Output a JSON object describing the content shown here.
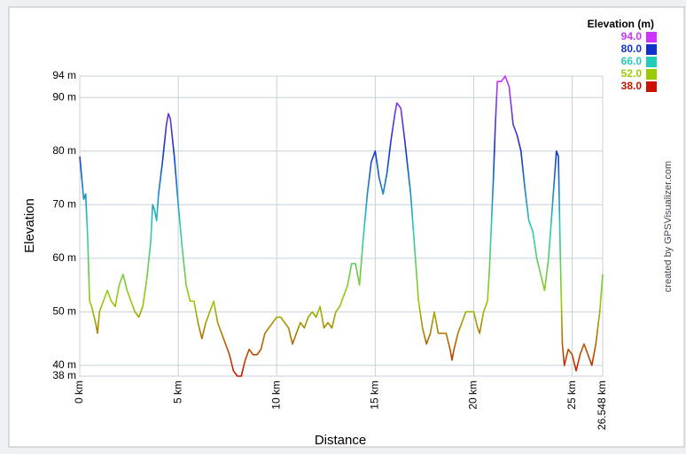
{
  "chart_data": {
    "type": "line",
    "x_label": "Distance",
    "y_label": "Elevation",
    "credit": "created by GPSVisualizer.com",
    "x": [
      0,
      0.2,
      0.3,
      0.4,
      0.5,
      0.6,
      0.8,
      0.9,
      1.0,
      1.2,
      1.4,
      1.6,
      1.8,
      2.0,
      2.2,
      2.4,
      2.6,
      2.8,
      3.0,
      3.2,
      3.4,
      3.6,
      3.7,
      3.8,
      3.9,
      4.0,
      4.2,
      4.4,
      4.5,
      4.6,
      4.8,
      5.0,
      5.2,
      5.4,
      5.6,
      5.8,
      6.0,
      6.2,
      6.4,
      6.6,
      6.8,
      7.0,
      7.2,
      7.4,
      7.6,
      7.8,
      8.0,
      8.2,
      8.4,
      8.6,
      8.8,
      9.0,
      9.2,
      9.4,
      9.6,
      9.8,
      10.0,
      10.2,
      10.4,
      10.6,
      10.8,
      11.0,
      11.2,
      11.4,
      11.6,
      11.8,
      12.0,
      12.2,
      12.4,
      12.6,
      12.8,
      13.0,
      13.2,
      13.4,
      13.6,
      13.8,
      14.0,
      14.2,
      14.4,
      14.6,
      14.8,
      15.0,
      15.2,
      15.4,
      15.6,
      15.8,
      16.0,
      16.1,
      16.3,
      16.5,
      16.8,
      17.0,
      17.2,
      17.4,
      17.6,
      17.8,
      18.0,
      18.2,
      18.4,
      18.6,
      18.8,
      18.9,
      19.0,
      19.2,
      19.4,
      19.6,
      19.8,
      20.0,
      20.2,
      20.3,
      20.5,
      20.7,
      20.8,
      21.0,
      21.1,
      21.2,
      21.4,
      21.6,
      21.8,
      22.0,
      22.2,
      22.4,
      22.6,
      22.8,
      23.0,
      23.2,
      23.4,
      23.6,
      23.8,
      24.0,
      24.2,
      24.3,
      24.4,
      24.5,
      24.6,
      24.8,
      25.0,
      25.2,
      25.4,
      25.6,
      25.8,
      26.0,
      26.2,
      26.4,
      26.548
    ],
    "series": [
      {
        "name": "Elevation",
        "values": [
          79,
          71,
          72,
          64,
          52,
          51,
          48,
          46,
          50,
          52,
          54,
          52,
          51,
          55,
          57,
          54,
          52,
          50,
          49,
          51,
          56,
          63,
          70,
          69,
          67,
          72,
          78,
          85,
          87,
          86,
          79,
          70,
          62,
          55,
          52,
          52,
          48,
          45,
          48,
          50,
          52,
          48,
          46,
          44,
          42,
          39,
          38,
          38,
          41,
          43,
          42,
          42,
          43,
          46,
          47,
          48,
          49,
          49,
          48,
          47,
          44,
          46,
          48,
          47,
          49,
          50,
          49,
          51,
          47,
          48,
          47,
          50,
          51,
          53,
          55,
          59,
          59,
          55,
          64,
          72,
          78,
          80,
          75,
          72,
          76,
          82,
          87,
          89,
          88,
          82,
          72,
          62,
          52,
          47,
          44,
          46,
          50,
          46,
          46,
          46,
          43,
          41,
          43,
          46,
          48,
          50,
          50,
          50,
          47,
          46,
          50,
          52,
          58,
          75,
          85,
          93,
          93,
          94,
          92,
          85,
          83,
          80,
          73,
          67,
          65,
          60,
          57,
          54,
          60,
          70,
          80,
          79,
          60,
          44,
          40,
          43,
          42,
          39,
          42,
          44,
          42,
          40,
          44,
          50,
          57
        ]
      }
    ],
    "xlim": [
      0,
      26.548
    ],
    "ylim": [
      38,
      94
    ],
    "xticks": [
      {
        "value": 0,
        "label": "0 km"
      },
      {
        "value": 5,
        "label": "5 km"
      },
      {
        "value": 10,
        "label": "10 km"
      },
      {
        "value": 15,
        "label": "15 km"
      },
      {
        "value": 20,
        "label": "20 km"
      },
      {
        "value": 25,
        "label": "25 km"
      },
      {
        "value": 26.548,
        "label": "26.548 km"
      }
    ],
    "yticks": [
      {
        "value": 38,
        "label": "38 m"
      },
      {
        "value": 40,
        "label": "40 m"
      },
      {
        "value": 50,
        "label": "50 m"
      },
      {
        "value": 60,
        "label": "60 m"
      },
      {
        "value": 70,
        "label": "70 m"
      },
      {
        "value": 80,
        "label": "80 m"
      },
      {
        "value": 90,
        "label": "90 m"
      },
      {
        "value": 94,
        "label": "94 m"
      }
    ],
    "grid": true,
    "color_scale": {
      "title": "Elevation (m)",
      "values": [
        94,
        80,
        66,
        52,
        38
      ],
      "value_labels": [
        "94.0",
        "80.0",
        "66.0",
        "52.0",
        "38.0"
      ],
      "colors": [
        "#cc33ff",
        "#1133cc",
        "#22ccbb",
        "#99cc00",
        "#cc1100"
      ]
    }
  }
}
